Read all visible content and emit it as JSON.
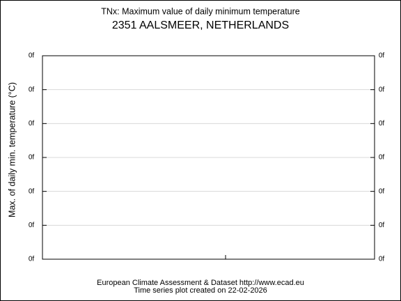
{
  "chart_data": {
    "type": "line",
    "title": "TNx: Maximum value of daily minimum temperature",
    "subtitle": "2351 AALSMEER, NETHERLANDS",
    "y_label": "Max. of daily min. temperature (°C)",
    "ytick_labels": [
      "0f",
      "0f",
      "0f",
      "0f",
      "0f",
      "0f",
      "0f"
    ],
    "grid": true,
    "footer": [
      "European Climate Assessment & Dataset  http://www.ecad.eu",
      "Time series plot created on 22-02-2026"
    ]
  }
}
